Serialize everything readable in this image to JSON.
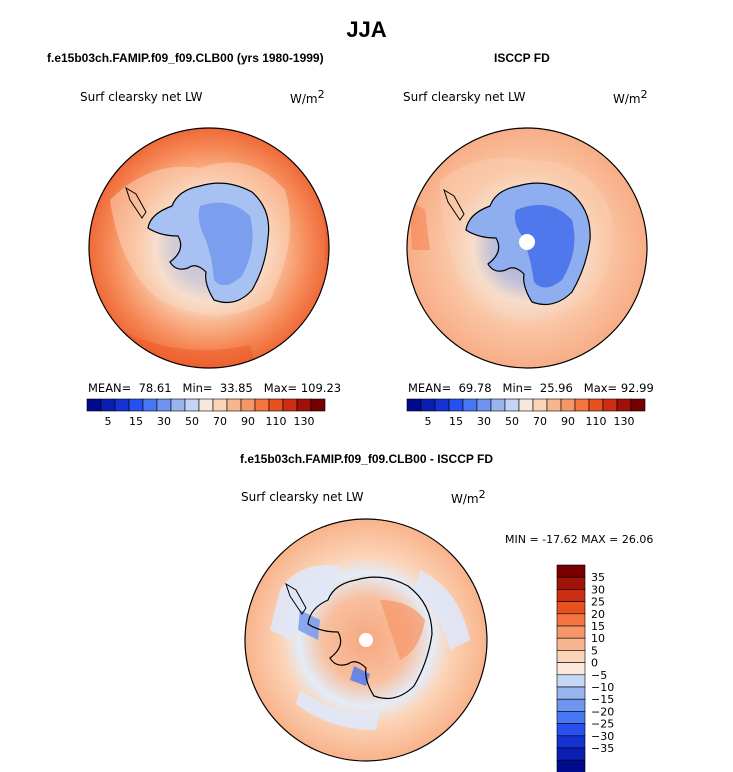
{
  "title": "JJA",
  "panels": [
    {
      "id": "model",
      "heading": "f.e15b03ch.FAMIP.f09_f09.CLB00 (yrs 1980-1999)",
      "field_label": "Surf clearsky net LW",
      "units": "W/m",
      "units_sup": "2",
      "stats": {
        "mean_label": "MEAN=",
        "mean": "78.61",
        "min_label": "Min=",
        "min": "33.85",
        "max_label": "Max=",
        "max": "109.23"
      },
      "has_pole_hole": false
    },
    {
      "id": "obs",
      "heading": "ISCCP FD",
      "field_label": "Surf clearsky net LW",
      "units": "W/m",
      "units_sup": "2",
      "stats": {
        "mean_label": "MEAN=",
        "mean": "69.78",
        "min_label": "Min=",
        "min": "25.96",
        "max_label": "Max=",
        "max": "92.99"
      },
      "has_pole_hole": true
    },
    {
      "id": "diff",
      "heading": "f.e15b03ch.FAMIP.f09_f09.CLB00 - ISCCP FD",
      "field_label": "Surf clearsky net LW",
      "units": "W/m",
      "units_sup": "2",
      "minmax_text": "MIN = -17.62 MAX =  26.06",
      "has_pole_hole": true
    }
  ],
  "colorbar_main": {
    "colors": [
      "#000a8c",
      "#0a1eb4",
      "#1432d2",
      "#2850f0",
      "#4678f5",
      "#6e96f0",
      "#9ab4f0",
      "#c4d4f2",
      "#f6e8de",
      "#fcd4b8",
      "#f8b690",
      "#f79668",
      "#f57440",
      "#e8501e",
      "#cd2d12",
      "#a01008",
      "#780000"
    ],
    "tick_labels": [
      "5",
      "15",
      "30",
      "50",
      "70",
      "90",
      "110",
      "130"
    ],
    "tick_positions": [
      1.5,
      3.5,
      5.5,
      7.5,
      9.5,
      11.5,
      13.5,
      15.5
    ]
  },
  "colorbar_diff": {
    "colors_top_to_bottom": [
      "#780000",
      "#a01408",
      "#cd2d12",
      "#e8501e",
      "#f57440",
      "#f79668",
      "#f8b690",
      "#fcd4b8",
      "#fbe8dc",
      "#c6d8f4",
      "#9ab4f0",
      "#6e96f0",
      "#4678f5",
      "#2850f0",
      "#1432d2",
      "#0a1eb4",
      "#000a8c"
    ],
    "tick_labels": [
      "35",
      "30",
      "25",
      "20",
      "15",
      "10",
      "5",
      "0",
      "−5",
      "−10",
      "−15",
      "−20",
      "−25",
      "−30",
      "−35"
    ]
  }
}
